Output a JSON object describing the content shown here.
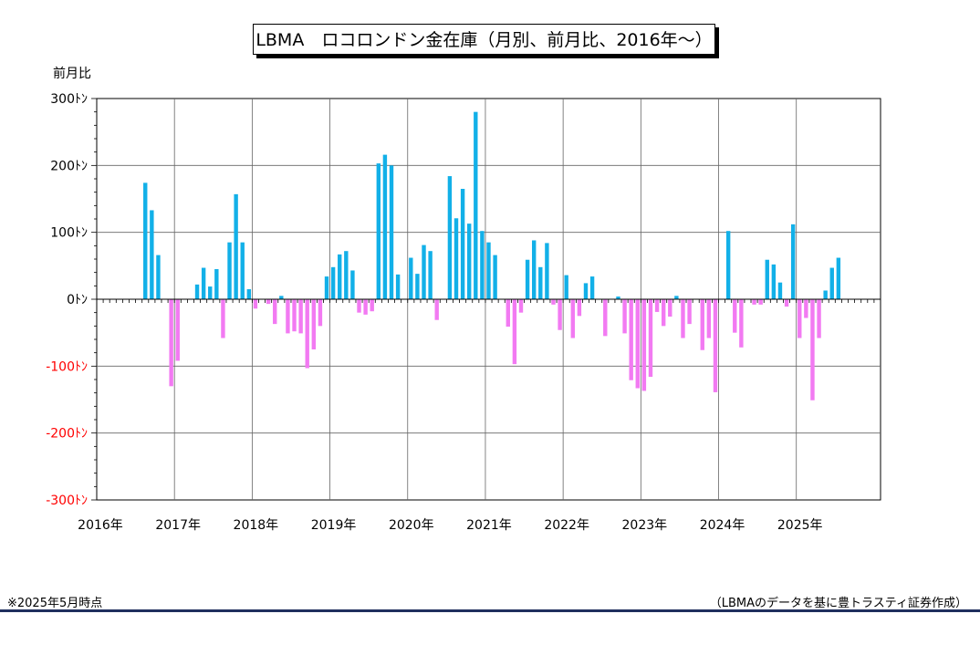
{
  "title": "LBMA　ロコロンドン金在庫（月別、前月比、2016年～）",
  "unit_label": "前月比",
  "footnote": "※2025年5月時点",
  "source": "（LBMAのデータを基に豊トラスティ証券作成）",
  "colors": {
    "positive": "#12b0e8",
    "negative": "#f27af2",
    "negative_tick": "#ff0000",
    "rule": "#1f2f5e"
  },
  "chart_data": {
    "type": "bar",
    "title": "LBMA　ロコロンドン金在庫（月別、前月比、2016年～）",
    "ylabel": "前月比",
    "ylim": [
      -300,
      300
    ],
    "y_ticks": [
      {
        "value": 300,
        "label": "300ﾄﾝ"
      },
      {
        "value": 200,
        "label": "200ﾄﾝ"
      },
      {
        "value": 100,
        "label": "100ﾄﾝ"
      },
      {
        "value": 0,
        "label": "0ﾄﾝ"
      },
      {
        "value": -100,
        "label": "-100ﾄﾝ"
      },
      {
        "value": -200,
        "label": "-200ﾄﾝ"
      },
      {
        "value": -300,
        "label": "-300ﾄﾝ"
      }
    ],
    "x_labels": [
      "2016年",
      "2017年",
      "2018年",
      "2019年",
      "2020年",
      "2021年",
      "2022年",
      "2023年",
      "2024年",
      "2025年"
    ],
    "grid": true,
    "months_start": "2016-01",
    "values": [
      0,
      0,
      0,
      0,
      0,
      0,
      0,
      174,
      133,
      66,
      0,
      -130,
      -92,
      0,
      0,
      22,
      47,
      19,
      45,
      -58,
      85,
      157,
      85,
      15,
      -14,
      0,
      -7,
      -37,
      5,
      -51,
      -48,
      -51,
      -103,
      -75,
      -40,
      34,
      48,
      67,
      72,
      43,
      -20,
      -23,
      -18,
      203,
      216,
      200,
      37,
      0,
      62,
      38,
      81,
      72,
      -31,
      0,
      184,
      121,
      165,
      113,
      280,
      102,
      85,
      66,
      0,
      -41,
      -97,
      -20,
      59,
      88,
      48,
      84,
      -8,
      -46,
      36,
      -58,
      -25,
      24,
      34,
      0,
      -55,
      0,
      4,
      -51,
      -121,
      -133,
      -137,
      -116,
      -19,
      -40,
      -26,
      5,
      -58,
      -37,
      0,
      -76,
      -58,
      -139,
      0,
      102,
      -50,
      -72,
      0,
      -8,
      -8,
      59,
      52,
      25,
      -11,
      112,
      -58,
      -28,
      -151,
      -58,
      13,
      47,
      62
    ]
  }
}
